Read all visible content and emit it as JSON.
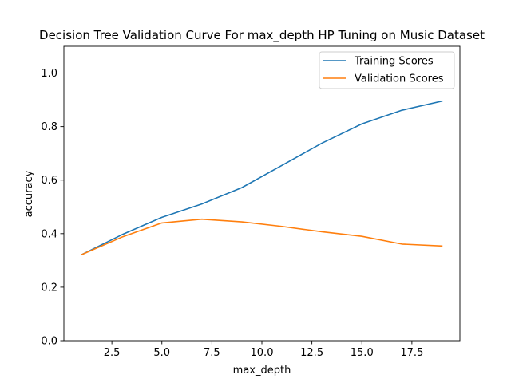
{
  "chart_data": {
    "type": "line",
    "title": "Decision Tree Validation Curve For max_depth HP Tuning on Music Dataset",
    "xlabel": "max_depth",
    "ylabel": "accuracy",
    "xlim": [
      0.1,
      19.9
    ],
    "ylim": [
      0.0,
      1.1
    ],
    "xticks": [
      2.5,
      5.0,
      7.5,
      10.0,
      12.5,
      15.0,
      17.5
    ],
    "xtick_labels": [
      "2.5",
      "5.0",
      "7.5",
      "10.0",
      "12.5",
      "15.0",
      "17.5"
    ],
    "yticks": [
      0.0,
      0.2,
      0.4,
      0.6,
      0.8,
      1.0
    ],
    "ytick_labels": [
      "0.0",
      "0.2",
      "0.4",
      "0.6",
      "0.8",
      "1.0"
    ],
    "grid": false,
    "legend_position": "top-right",
    "x": [
      1,
      3,
      5,
      7,
      9,
      11,
      13,
      15,
      17,
      19
    ],
    "series": [
      {
        "name": "Training Scores",
        "color": "#1f77b4",
        "values": [
          0.322,
          0.396,
          0.461,
          0.511,
          0.572,
          0.655,
          0.738,
          0.81,
          0.861,
          0.895
        ]
      },
      {
        "name": "Validation Scores",
        "color": "#ff7f0e",
        "values": [
          0.322,
          0.387,
          0.44,
          0.454,
          0.444,
          0.427,
          0.407,
          0.39,
          0.361,
          0.354
        ]
      }
    ]
  }
}
